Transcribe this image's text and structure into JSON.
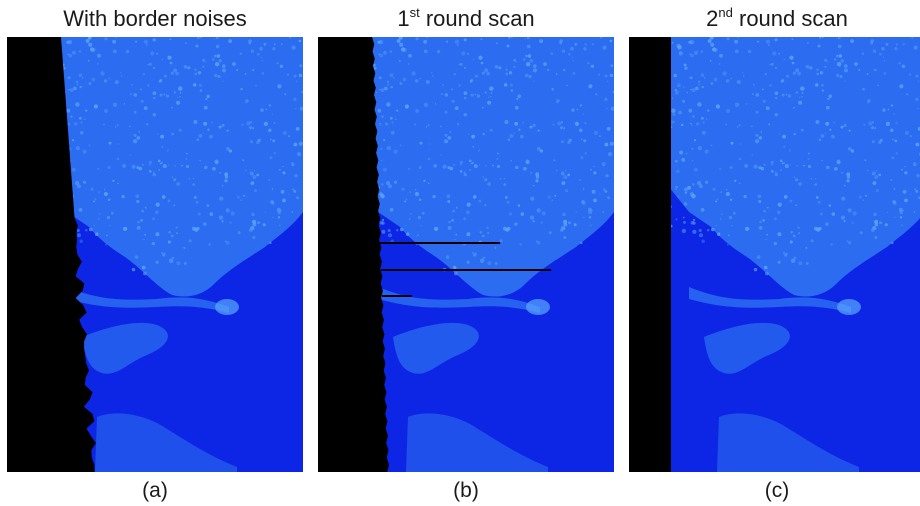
{
  "figure": {
    "panels": [
      {
        "id": "a",
        "title": "With border noises",
        "title_sup": "",
        "title_rest": "",
        "caption": "(a)",
        "border": "noisy"
      },
      {
        "id": "b",
        "title": "1",
        "title_sup": "st",
        "title_rest": " round scan",
        "caption": "(b)",
        "border": "partial"
      },
      {
        "id": "c",
        "title": "2",
        "title_sup": "nd",
        "title_rest": " round scan",
        "caption": "(c)",
        "border": "clean"
      }
    ]
  },
  "colors": {
    "water": "#0d26e6",
    "land": "#2b6cf0",
    "land_bright": "#5aa6ff",
    "background": "#000000"
  }
}
